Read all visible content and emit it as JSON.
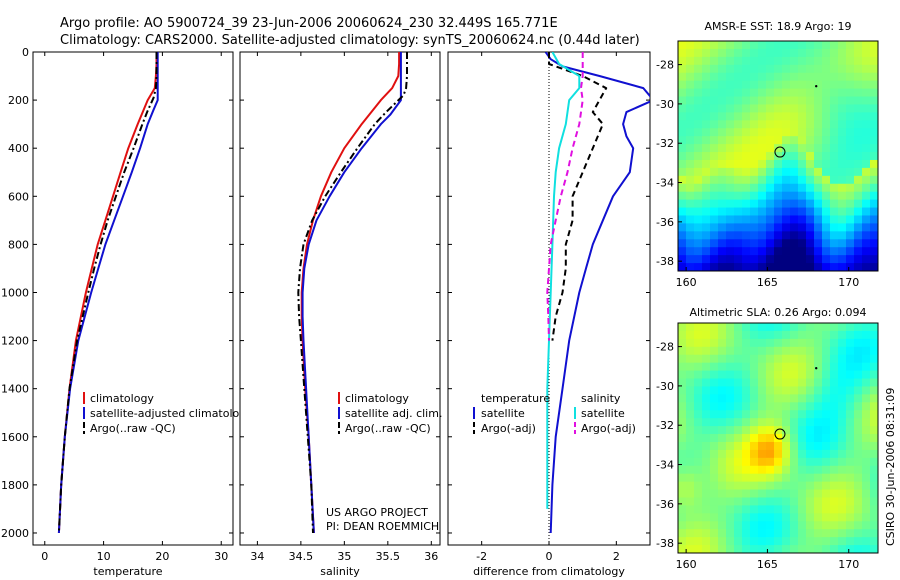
{
  "figure": {
    "title_line1": "Argo profile: AO 5900724_39 23-Jun-2006 20060624_230 32.449S 165.771E",
    "title_line2": "Climatology: CARS2000. Satellite-adjusted climatology: synTS_20060624.nc (0.44d later)",
    "credit_line1": "US ARGO PROJECT",
    "credit_line2": "PI: DEAN ROEMMICH",
    "side_stamp": "CSIRO 30-Jun-2006 08:31:09"
  },
  "colors": {
    "climatology": "#e01010",
    "satellite": "#1010d0",
    "argo": "#000000",
    "salinity_satellite": "#10e0e0",
    "salinity_argo": "#e010e0"
  },
  "chart_data": [
    {
      "type": "line",
      "name": "temperature-profile",
      "xlabel": "temperature",
      "ylabel": "",
      "xlim": [
        -2,
        32
      ],
      "ylim": [
        2050,
        0
      ],
      "xticks": [
        0,
        10,
        20,
        30
      ],
      "yticks": [
        0,
        200,
        400,
        600,
        800,
        1000,
        1200,
        1400,
        1600,
        1800,
        2000
      ],
      "legend": [
        "climatology",
        "satellite-adjusted climatology",
        "Argo(..raw -QC)"
      ],
      "legend_position": "lower-right",
      "series": [
        {
          "name": "climatology",
          "color_key": "climatology",
          "dash": "solid",
          "depth": [
            0,
            50,
            100,
            150,
            200,
            300,
            400,
            500,
            600,
            700,
            800,
            900,
            1000,
            1200,
            1400,
            1600,
            1800,
            2000
          ],
          "values": [
            19.0,
            19.0,
            18.9,
            18.7,
            17.5,
            15.8,
            14.2,
            12.9,
            11.6,
            10.3,
            9.0,
            8.0,
            7.0,
            5.3,
            4.2,
            3.4,
            2.8,
            2.4
          ]
        },
        {
          "name": "satellite-adjusted climatology",
          "color_key": "satellite",
          "dash": "solid",
          "depth": [
            0,
            50,
            100,
            150,
            200,
            240,
            300,
            400,
            500,
            600,
            700,
            800,
            900,
            1000,
            1200,
            1400,
            1600,
            1800,
            2000
          ],
          "values": [
            19.2,
            19.2,
            19.2,
            19.2,
            19.2,
            18.5,
            17.5,
            16.2,
            14.8,
            13.3,
            11.8,
            10.3,
            9.1,
            7.9,
            5.7,
            4.3,
            3.4,
            2.8,
            2.4
          ]
        },
        {
          "name": "Argo(..raw -QC)",
          "color_key": "argo",
          "dash": "dash-dot",
          "depth": [
            0,
            50,
            100,
            150,
            190,
            250,
            300,
            400,
            500,
            600,
            700,
            800,
            900,
            1000,
            1200,
            1400,
            1600,
            1800,
            2000
          ],
          "values": [
            19.0,
            19.0,
            19.0,
            18.9,
            18.5,
            17.4,
            16.6,
            15.1,
            13.5,
            12.1,
            10.7,
            9.5,
            8.4,
            7.4,
            5.5,
            4.2,
            3.4,
            2.8,
            2.4
          ]
        }
      ]
    },
    {
      "type": "line",
      "name": "salinity-profile",
      "xlabel": "salinity",
      "ylabel": "",
      "xlim": [
        33.8,
        36.1
      ],
      "ylim": [
        2050,
        0
      ],
      "xticks": [
        34,
        34.5,
        35,
        35.5,
        36
      ],
      "yticks": [
        0,
        200,
        400,
        600,
        800,
        1000,
        1200,
        1400,
        1600,
        1800,
        2000
      ],
      "legend": [
        "climatology",
        "satellite adj. clim.",
        "Argo(..raw -QC)"
      ],
      "legend_position": "lower-right",
      "series": [
        {
          "name": "climatology",
          "color_key": "climatology",
          "dash": "solid",
          "depth": [
            0,
            50,
            100,
            150,
            200,
            300,
            400,
            500,
            600,
            700,
            800,
            900,
            1000,
            1100,
            1200,
            1400,
            1600,
            1800,
            2000
          ],
          "values": [
            35.63,
            35.63,
            35.62,
            35.55,
            35.42,
            35.2,
            35.0,
            34.85,
            34.73,
            34.64,
            34.57,
            34.53,
            34.51,
            34.51,
            34.52,
            34.55,
            34.59,
            34.62,
            34.65
          ]
        },
        {
          "name": "satellite adj. clim.",
          "color_key": "satellite",
          "dash": "solid",
          "depth": [
            0,
            50,
            100,
            150,
            200,
            260,
            300,
            400,
            500,
            600,
            700,
            800,
            900,
            1000,
            1100,
            1200,
            1400,
            1600,
            1800,
            2000
          ],
          "values": [
            35.65,
            35.65,
            35.65,
            35.65,
            35.65,
            35.53,
            35.42,
            35.2,
            35.0,
            34.83,
            34.68,
            34.59,
            34.54,
            34.52,
            34.52,
            34.53,
            34.56,
            34.59,
            34.62,
            34.65
          ]
        },
        {
          "name": "Argo(..raw -QC)",
          "color_key": "argo",
          "dash": "dash-dot",
          "depth": [
            0,
            50,
            100,
            150,
            180,
            250,
            300,
            400,
            500,
            600,
            700,
            800,
            900,
            1000,
            1100,
            1200,
            1400,
            1600,
            1800,
            2000
          ],
          "values": [
            35.72,
            35.72,
            35.72,
            35.71,
            35.68,
            35.48,
            35.35,
            35.15,
            34.96,
            34.78,
            34.63,
            34.53,
            34.49,
            34.47,
            34.48,
            34.5,
            34.54,
            34.58,
            34.62,
            34.64
          ]
        }
      ]
    },
    {
      "type": "line",
      "name": "difference-profile",
      "xlabel": "difference from climatology",
      "ylabel": "",
      "xlim": [
        -3,
        3
      ],
      "ylim": [
        2050,
        0
      ],
      "xticks": [
        -2,
        0,
        2
      ],
      "yticks": [
        0,
        200,
        400,
        600,
        800,
        1000,
        1200,
        1400,
        1600,
        1800,
        2000
      ],
      "legend_groups": [
        {
          "header": "temperature",
          "items": [
            "satellite",
            "Argo(-adj)"
          ]
        },
        {
          "header": "salinity",
          "items": [
            "satellite",
            "Argo(-adj)"
          ]
        }
      ],
      "legend_position": "lower-center",
      "series": [
        {
          "name": "temperature satellite",
          "color_key": "satellite",
          "dash": "solid",
          "depth": [
            0,
            30,
            60,
            100,
            150,
            200,
            250,
            300,
            350,
            400,
            500,
            600,
            700,
            800,
            900,
            1000,
            1200,
            1400,
            1600,
            1800,
            2000
          ],
          "values": [
            -0.1,
            0.05,
            0.4,
            1.5,
            2.8,
            3.1,
            2.3,
            2.2,
            2.3,
            2.5,
            2.4,
            1.9,
            1.6,
            1.3,
            1.1,
            0.9,
            0.6,
            0.4,
            0.2,
            0.1,
            0.05
          ]
        },
        {
          "name": "temperature Argo(-adj)",
          "color_key": "argo",
          "dash": "dashed",
          "depth": [
            0,
            50,
            100,
            150,
            200,
            250,
            300,
            400,
            500,
            600,
            700,
            800,
            900,
            1000,
            1100,
            1200
          ],
          "values": [
            0.0,
            0.0,
            1.0,
            1.7,
            1.5,
            1.3,
            1.6,
            1.3,
            1.0,
            0.7,
            0.7,
            0.5,
            0.5,
            0.4,
            0.2,
            0.1
          ]
        },
        {
          "name": "salinity satellite",
          "color_key": "salinity_satellite",
          "dash": "solid",
          "depth": [
            0,
            50,
            100,
            150,
            200,
            300,
            400,
            500,
            600,
            800,
            1000,
            1200,
            1400,
            1600,
            1800,
            1900
          ],
          "values": [
            0.1,
            0.3,
            0.9,
            0.9,
            0.6,
            0.5,
            0.3,
            0.2,
            0.15,
            0.1,
            0.05,
            0.0,
            -0.05,
            -0.05,
            -0.05,
            -0.05
          ]
        },
        {
          "name": "salinity Argo(-adj)",
          "color_key": "salinity_argo",
          "dash": "dashed",
          "depth": [
            0,
            50,
            100,
            150,
            200,
            300,
            400,
            500,
            600,
            700,
            800,
            900,
            1000,
            1100,
            1200
          ],
          "values": [
            1.0,
            1.0,
            1.0,
            0.95,
            1.0,
            0.9,
            0.7,
            0.55,
            0.35,
            0.2,
            0.05,
            0.0,
            -0.05,
            -0.02,
            0.0
          ]
        }
      ]
    },
    {
      "type": "heatmap",
      "name": "sst-map",
      "title": "AMSR-E SST: 18.9 Argo: 19",
      "xlim": [
        159.5,
        171.8
      ],
      "ylim": [
        -38.5,
        -26.8
      ],
      "xticks": [
        160,
        165,
        170
      ],
      "yticks": [
        -28,
        -30,
        -32,
        -34,
        -36,
        -38
      ],
      "profile_location": {
        "lon": 165.771,
        "lat": -32.449
      },
      "colormap": "jet"
    },
    {
      "type": "heatmap",
      "name": "sla-map",
      "title": "Altimetric SLA: 0.26 Argo: 0.094",
      "xlim": [
        159.5,
        171.8
      ],
      "ylim": [
        -38.5,
        -26.8
      ],
      "xticks": [
        160,
        165,
        170
      ],
      "yticks": [
        -28,
        -30,
        -32,
        -34,
        -36,
        -38
      ],
      "profile_location": {
        "lon": 165.771,
        "lat": -32.449
      },
      "colormap": "jet"
    }
  ]
}
